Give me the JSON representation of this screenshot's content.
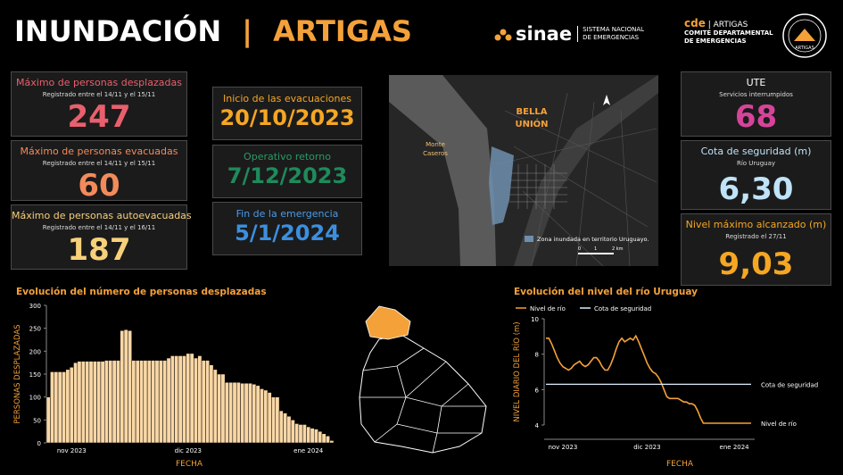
{
  "header": {
    "title": "INUNDACIÓN",
    "separator": "|",
    "place": "ARTIGAS",
    "logo_sinae": "sinae",
    "logo_sinae_line1": "SISTEMA NACIONAL",
    "logo_sinae_line2": "DE EMERGENCIAS",
    "logo_cde": "cde",
    "logo_cde_place": "| ARTIGAS",
    "logo_cde_line1": "COMITÉ DEPARTAMENTAL",
    "logo_cde_line2": "DE EMERGENCIAS",
    "seal_text": "ARTIGAS"
  },
  "left_cards": [
    {
      "title": "Máximo de personas desplazadas",
      "subtitle": "Registrado entre el 14/11 y el 15/11",
      "value": "247"
    },
    {
      "title": "Máximo de personas evacuadas",
      "subtitle": "Registrado entre el 14/11 y el 15/11",
      "value": "60"
    },
    {
      "title": "Máximo de personas autoevacuadas",
      "subtitle": "Registrado entre el 14/11 y el 16/11",
      "value": "187"
    }
  ],
  "middle_cards": [
    {
      "title": "Inicio de las evacuaciones",
      "value": "20/10/2023"
    },
    {
      "title": "Operativo retorno",
      "value": "7/12/2023"
    },
    {
      "title": "Fin de la emergencia",
      "value": "5/1/2024"
    }
  ],
  "right_cards": [
    {
      "title": "UTE",
      "subtitle": "Servicios interrumpidos",
      "value": "68"
    },
    {
      "title": "Cota de seguridad (m)",
      "subtitle": "Río Uruguay",
      "value": "6,30"
    },
    {
      "title": "Nivel máximo alcanzado (m)",
      "subtitle": "Registrado el 27/11",
      "value": "9,03"
    }
  ],
  "map": {
    "city_line1": "BELLA",
    "city_line2": "UNIÓN",
    "other_city_line1": "Monte",
    "other_city_line2": "Caseros",
    "legend": "Zona inundada en territorio Uruguayo.",
    "scale": [
      "0",
      "1",
      "2 km"
    ]
  },
  "chart_data": [
    {
      "type": "bar",
      "title": "Evolución del número de personas desplazadas",
      "x_label": "FECHA",
      "y_label": "PERSONAS DESPLAZADAS",
      "color": "#f9d7a6",
      "categories": [
        null,
        null,
        null,
        null,
        null,
        null,
        "nov 2023",
        null,
        null,
        null,
        null,
        null,
        null,
        null,
        null,
        null,
        null,
        null,
        null,
        null,
        null,
        null,
        null,
        null,
        null,
        null,
        null,
        null,
        null,
        null,
        null,
        null,
        null,
        null,
        null,
        null,
        "dic 2023",
        null,
        null,
        null,
        null,
        null,
        null,
        null,
        null,
        null,
        null,
        null,
        null,
        null,
        null,
        null,
        null,
        null,
        null,
        null,
        null,
        null,
        null,
        null,
        null,
        null,
        null,
        null,
        null,
        null,
        null,
        "ene 2024",
        null,
        null,
        null,
        null,
        null,
        null
      ],
      "values": [
        100,
        155,
        155,
        155,
        155,
        160,
        165,
        175,
        178,
        178,
        178,
        178,
        178,
        178,
        178,
        180,
        180,
        180,
        180,
        245,
        247,
        245,
        180,
        180,
        180,
        180,
        180,
        180,
        180,
        180,
        180,
        185,
        190,
        190,
        190,
        190,
        195,
        195,
        185,
        190,
        180,
        180,
        170,
        160,
        150,
        150,
        132,
        132,
        132,
        132,
        130,
        130,
        130,
        128,
        125,
        118,
        115,
        110,
        100,
        100,
        70,
        65,
        58,
        50,
        42,
        40,
        40,
        35,
        32,
        30,
        25,
        20,
        15,
        5
      ],
      "ylim": [
        0,
        300
      ],
      "yticks": [
        0,
        50,
        100,
        150,
        200,
        250,
        300
      ]
    },
    {
      "type": "line",
      "title": "Evolución del nivel del río Uruguay",
      "x_label": "FECHA",
      "y_label": "NIVEL DIARIO DEL RÍO (m)",
      "categories": [
        null,
        null,
        null,
        null,
        null,
        null,
        "nov 2023",
        null,
        null,
        null,
        null,
        null,
        null,
        null,
        null,
        null,
        null,
        null,
        null,
        null,
        null,
        null,
        null,
        null,
        null,
        null,
        null,
        null,
        null,
        null,
        null,
        null,
        null,
        null,
        null,
        null,
        "dic 2023",
        null,
        null,
        null,
        null,
        null,
        null,
        null,
        null,
        null,
        null,
        null,
        null,
        null,
        null,
        null,
        null,
        null,
        null,
        null,
        null,
        null,
        null,
        null,
        null,
        null,
        null,
        null,
        null,
        null,
        null,
        "ene 2024",
        null,
        null,
        null,
        null,
        null,
        null
      ],
      "series": [
        {
          "name": "Nivel de río",
          "color": "#f5a13a",
          "values": [
            8.9,
            8.9,
            8.6,
            8.2,
            7.8,
            7.5,
            7.3,
            7.2,
            7.1,
            7.2,
            7.4,
            7.5,
            7.6,
            7.4,
            7.3,
            7.4,
            7.6,
            7.8,
            7.8,
            7.6,
            7.3,
            7.1,
            7.1,
            7.4,
            7.8,
            8.3,
            8.7,
            8.9,
            8.7,
            8.8,
            8.9,
            8.8,
            9.03,
            8.7,
            8.3,
            7.9,
            7.5,
            7.2,
            7.0,
            6.9,
            6.7,
            6.4,
            6.0,
            5.6,
            5.5,
            5.5,
            5.5,
            5.5,
            5.4,
            5.3,
            5.3,
            5.2,
            5.2,
            5.1,
            4.8,
            4.4,
            4.1,
            4.1,
            4.1,
            4.1,
            4.1,
            4.1,
            4.1,
            4.1,
            4.1,
            4.1,
            4.1,
            4.1,
            4.1,
            4.1,
            4.1,
            4.1,
            4.1,
            4.1
          ]
        },
        {
          "name": "Cota de seguridad",
          "color": "#ddeeff",
          "values": [
            6.3,
            6.3,
            6.3,
            6.3,
            6.3,
            6.3,
            6.3,
            6.3,
            6.3,
            6.3,
            6.3,
            6.3,
            6.3,
            6.3,
            6.3,
            6.3,
            6.3,
            6.3,
            6.3,
            6.3,
            6.3,
            6.3,
            6.3,
            6.3,
            6.3,
            6.3,
            6.3,
            6.3,
            6.3,
            6.3,
            6.3,
            6.3,
            6.3,
            6.3,
            6.3,
            6.3,
            6.3,
            6.3,
            6.3,
            6.3,
            6.3,
            6.3,
            6.3,
            6.3,
            6.3,
            6.3,
            6.3,
            6.3,
            6.3,
            6.3,
            6.3,
            6.3,
            6.3,
            6.3,
            6.3,
            6.3,
            6.3,
            6.3,
            6.3,
            6.3,
            6.3,
            6.3,
            6.3,
            6.3,
            6.3,
            6.3,
            6.3,
            6.3,
            6.3,
            6.3,
            6.3,
            6.3,
            6.3,
            6.3
          ]
        }
      ],
      "ylim": [
        4,
        10
      ],
      "yticks": [
        4,
        6,
        8,
        10
      ]
    }
  ]
}
